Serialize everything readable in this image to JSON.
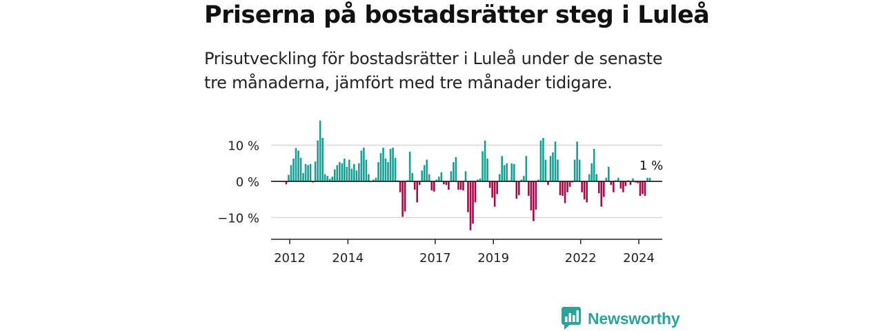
{
  "header": {
    "title": "Priserna på bostadsrätter steg i Luleå",
    "subtitle": "Prisutveckling för bostadsrätter i Luleå under de senaste tre månaderna, jämfört med tre månader tidigare."
  },
  "brand": {
    "name": "Newsworthy"
  },
  "colors": {
    "positive": "#1a9e93",
    "negative": "#a30b45",
    "grid": "#d9d9d9",
    "axis": "#222222"
  },
  "chart_data": {
    "type": "bar",
    "title": "Priserna på bostadsrätter steg i Luleå",
    "xlabel": "",
    "ylabel": "",
    "ylim": [
      -16,
      18
    ],
    "x_start": 2011.88,
    "x_step": 0.08333,
    "y_ticks": [
      {
        "value": 10,
        "label": "10 %"
      },
      {
        "value": 0,
        "label": "0 %"
      },
      {
        "value": -10,
        "label": "−10 %"
      }
    ],
    "x_ticks": [
      "2012",
      "2014",
      "2017",
      "2019",
      "2022",
      "2024"
    ],
    "annotation": {
      "label": "1 %",
      "value": 1
    },
    "values": [
      -0.8,
      1.8,
      4.5,
      6.3,
      9.2,
      8.5,
      6.5,
      2.3,
      4.8,
      4.5,
      4.8,
      -0.3,
      5.5,
      11.3,
      16.8,
      12.0,
      2.0,
      1.5,
      0.7,
      1.3,
      3.3,
      4.5,
      5.3,
      5.0,
      6.3,
      4.0,
      6.0,
      3.5,
      4.8,
      3.0,
      5.0,
      8.5,
      9.3,
      6.0,
      2.0,
      0.2,
      0.5,
      1.0,
      5.3,
      7.8,
      9.3,
      6.3,
      5.3,
      9.0,
      9.3,
      6.5,
      0.3,
      -3.0,
      -9.8,
      -8.3,
      0.3,
      8.2,
      2.3,
      -2.3,
      -5.8,
      -1.0,
      3.0,
      4.5,
      6.0,
      2.0,
      -2.5,
      -2.8,
      0.5,
      1.3,
      2.5,
      -0.8,
      -1.0,
      -2.3,
      2.8,
      5.3,
      6.7,
      -2.3,
      -2.3,
      -2.5,
      2.8,
      -8.5,
      -13.5,
      -11.7,
      -5.8,
      0.5,
      0.8,
      8.3,
      11.3,
      6.3,
      -1.8,
      -4.5,
      -7.0,
      -3.5,
      2.0,
      7.0,
      4.5,
      5.0,
      0.3,
      5.0,
      4.8,
      -4.8,
      -3.8,
      0.5,
      1.5,
      7.0,
      -4.0,
      -8.0,
      -11.0,
      -7.8,
      0.5,
      11.3,
      12.0,
      6.0,
      -1.0,
      7.0,
      8.0,
      11.0,
      6.0,
      -3.8,
      -4.0,
      -6.0,
      -3.0,
      -1.5,
      -0.3,
      6.0,
      11.0,
      6.0,
      -3.0,
      -5.0,
      -5.8,
      2.0,
      5.0,
      9.0,
      2.0,
      -3.3,
      -7.0,
      -4.3,
      1.0,
      4.0,
      -1.0,
      -3.0,
      0.3,
      1.0,
      -2.0,
      -3.0,
      -1.3,
      0.3,
      -1.0,
      0.8,
      -0.3,
      -0.5,
      -4.0,
      -3.5,
      -4.0,
      1.0,
      1.0
    ]
  }
}
